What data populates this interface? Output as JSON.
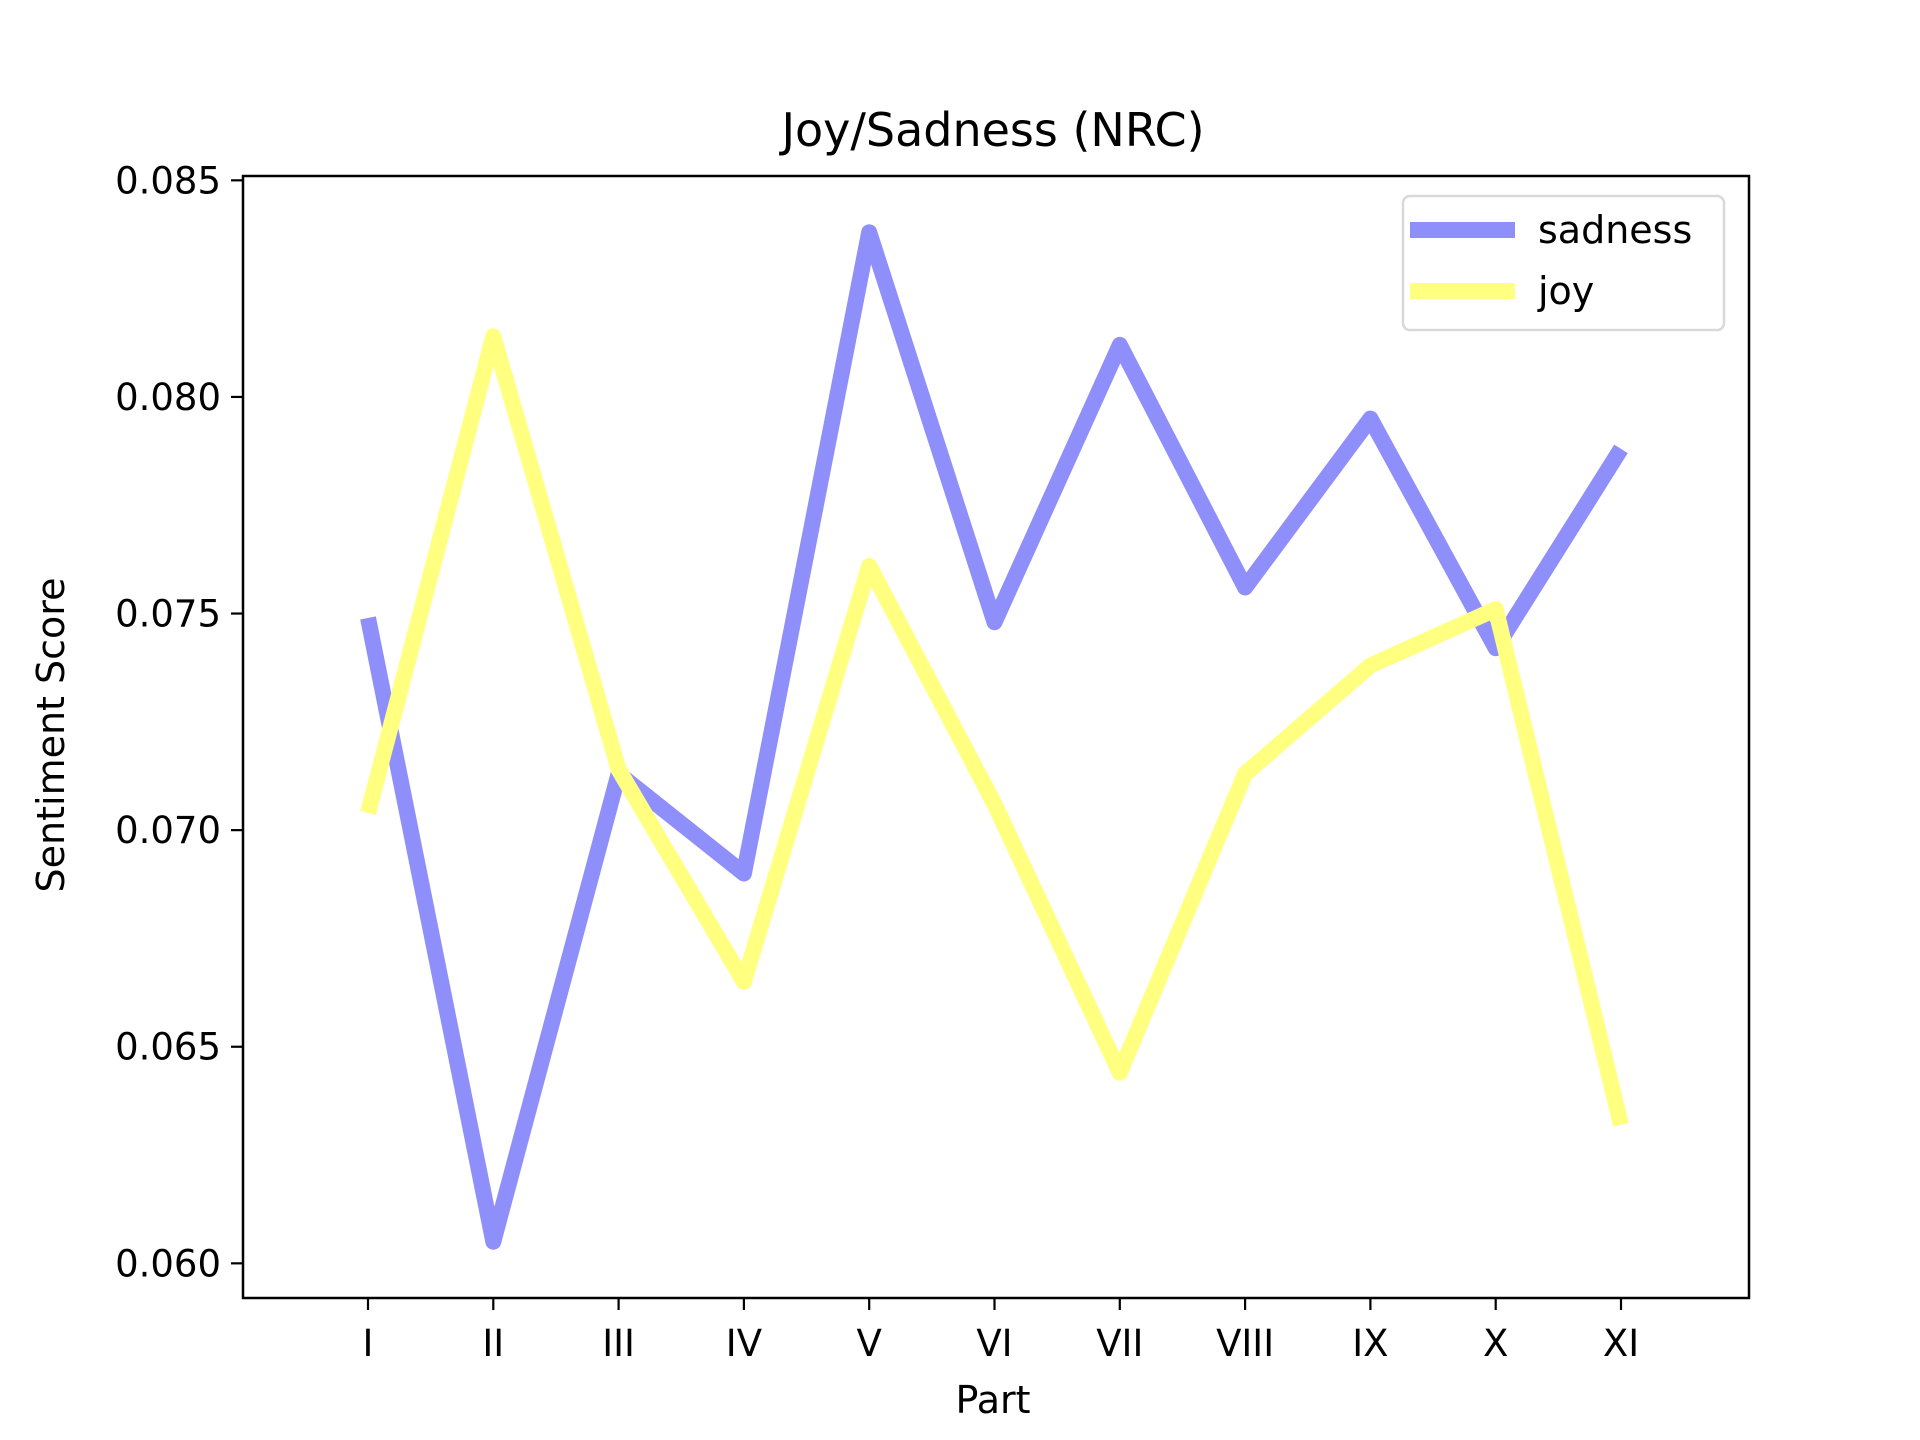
{
  "chart_data": {
    "type": "line",
    "title": "Joy/Sadness (NRC)",
    "xlabel": "Part",
    "ylabel": "Sentiment Score",
    "categories": [
      "I",
      "II",
      "III",
      "IV",
      "V",
      "VI",
      "VII",
      "VIII",
      "IX",
      "X",
      "XI"
    ],
    "y_ticks": [
      "0.060",
      "0.065",
      "0.070",
      "0.075",
      "0.080",
      "0.085"
    ],
    "ylim": [
      0.0592,
      0.0851
    ],
    "grid": false,
    "legend_position": "top-right",
    "series": [
      {
        "name": "sadness",
        "color": "#8f8ffb",
        "values": [
          0.0749,
          0.0605,
          0.0713,
          0.069,
          0.0838,
          0.0748,
          0.0812,
          0.0756,
          0.0795,
          0.0742,
          0.0788
        ]
      },
      {
        "name": "joy",
        "color": "#ffff80",
        "values": [
          0.0704,
          0.0814,
          0.0714,
          0.0665,
          0.0761,
          0.0706,
          0.0644,
          0.0713,
          0.0738,
          0.0751,
          0.0632
        ]
      }
    ]
  }
}
